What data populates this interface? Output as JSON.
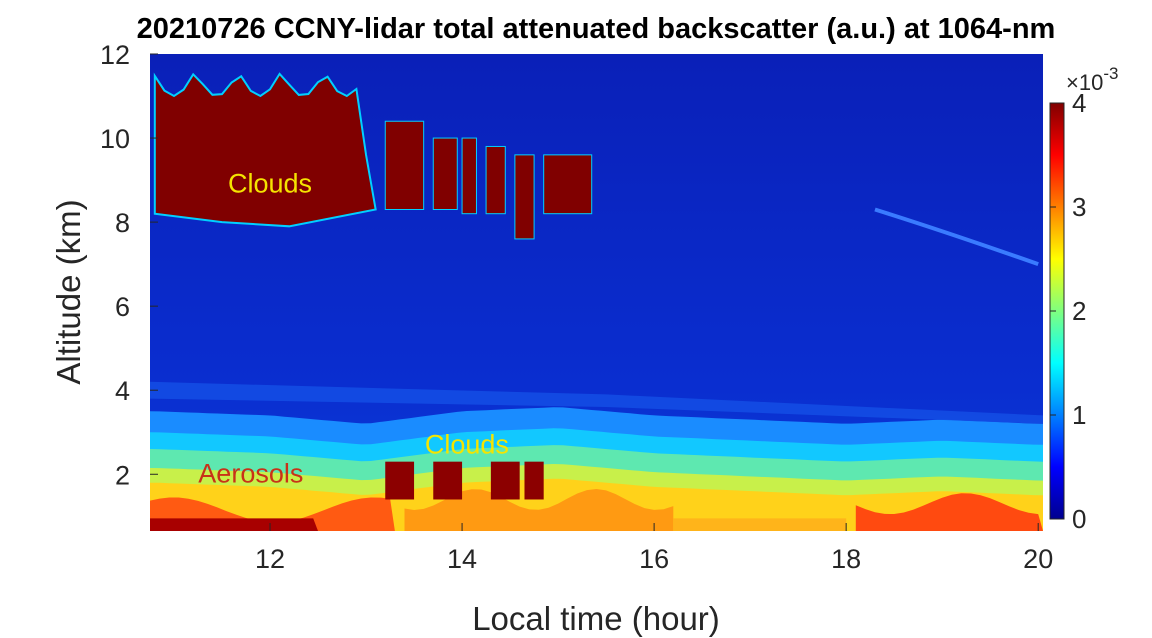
{
  "chart_data": {
    "type": "heatmap",
    "title": "20210726 CCNY-lidar total attenuated backscatter (a.u.) at 1064-nm",
    "xlabel": "Local time (hour)",
    "ylabel": "Altitude (km)",
    "xlim": [
      10.75,
      20.05
    ],
    "ylim": [
      0.65,
      12
    ],
    "xticks": [
      12,
      14,
      16,
      18,
      20
    ],
    "yticks": [
      2,
      4,
      6,
      8,
      10,
      12
    ],
    "colorbar": {
      "clim": [
        0,
        4
      ],
      "ticks": [
        0,
        1,
        2,
        3,
        4
      ],
      "exponent": "×10",
      "exponent_power": "-3",
      "colormap": "jet"
    },
    "annotations": [
      {
        "text": "Clouds",
        "x": 12.0,
        "y": 8.7,
        "color": "#f5e400"
      },
      {
        "text": "Clouds",
        "x": 14.05,
        "y": 2.5,
        "color": "#f5e400"
      },
      {
        "text": "Aerosols",
        "x": 11.8,
        "y": 1.8,
        "color": "#c83218"
      }
    ],
    "features": {
      "upper_cloud_layer": {
        "time_range": [
          10.8,
          15.35
        ],
        "base_km": 8.2,
        "top_km": 11.6
      },
      "boundary_layer_top_km": [
        {
          "t": 10.8,
          "z": 2.6
        },
        {
          "t": 12.0,
          "z": 2.5
        },
        {
          "t": 13.0,
          "z": 2.3
        },
        {
          "t": 14.0,
          "z": 2.6
        },
        {
          "t": 15.0,
          "z": 2.7
        },
        {
          "t": 16.0,
          "z": 2.5
        },
        {
          "t": 17.0,
          "z": 2.4
        },
        {
          "t": 18.0,
          "z": 2.3
        },
        {
          "t": 19.0,
          "z": 2.4
        },
        {
          "t": 20.0,
          "z": 2.3
        }
      ]
    }
  }
}
